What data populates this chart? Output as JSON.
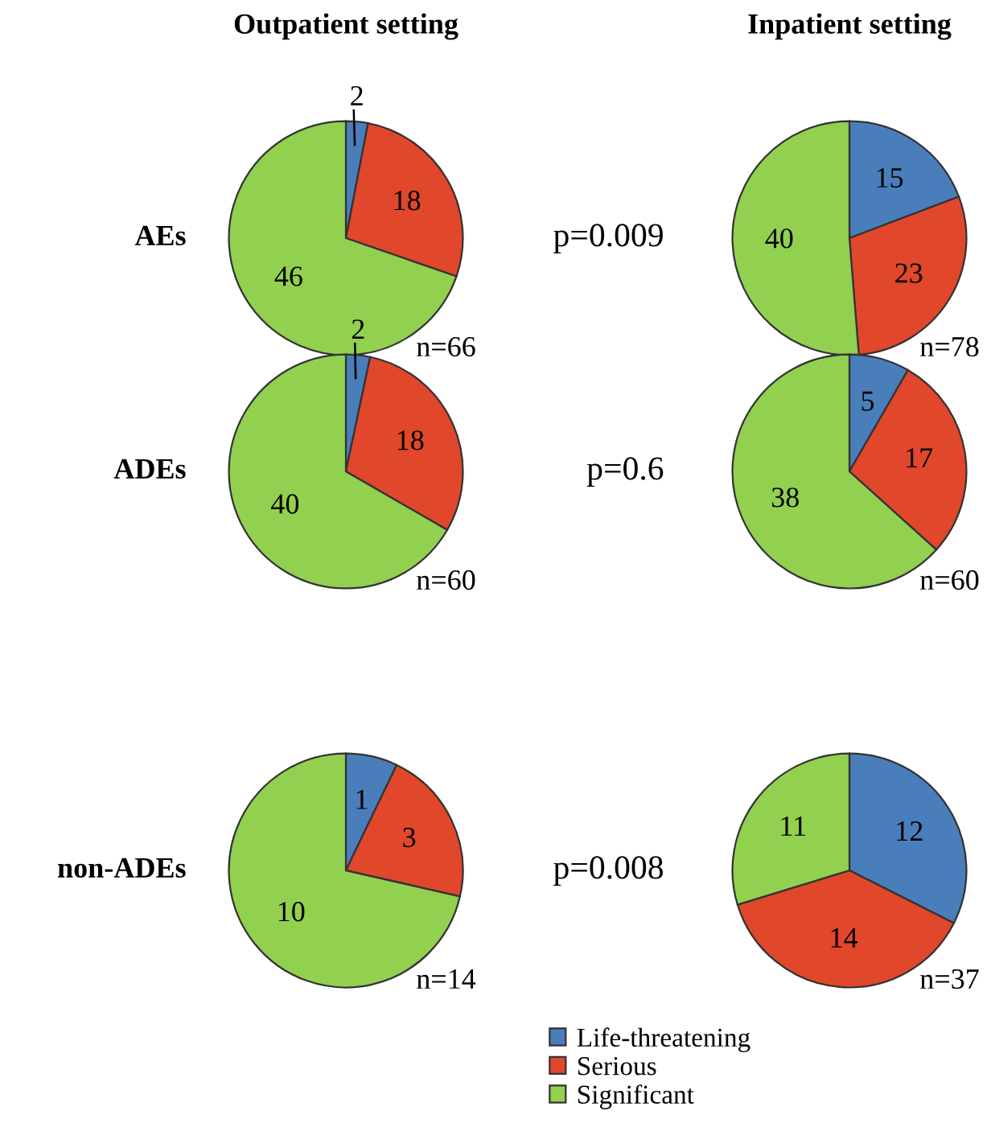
{
  "chart_data": [
    {
      "type": "pie",
      "title": "Outpatient setting",
      "categories": [
        "Life-threatening",
        "Serious",
        "Significant"
      ],
      "values": [
        2,
        18,
        46
      ],
      "colors": [
        "#4a7ebb",
        "#e0472b",
        "#92d050"
      ],
      "data_labels": true,
      "annotations": [
        "AEs",
        "n=66"
      ],
      "legend": "bottom"
    },
    {
      "type": "pie",
      "title": "Inpatient setting",
      "categories": [
        null,
        null,
        null
      ],
      "values": [
        15,
        23,
        40
      ],
      "colors": [
        "#4a7ebb",
        "#e0472b",
        "#92d050"
      ],
      "data_labels": true,
      "annotations": [
        "p=0.009",
        "n=78"
      ]
    },
    {
      "type": "pie",
      "categories": [
        null,
        null,
        null
      ],
      "values": [
        2,
        18,
        40
      ],
      "colors": [
        "#4a7ebb",
        "#e0472b",
        "#92d050"
      ],
      "data_labels": true,
      "annotations": [
        "ADEs",
        "n=60"
      ]
    },
    {
      "type": "pie",
      "categories": [
        null,
        null,
        null
      ],
      "values": [
        5,
        17,
        38
      ],
      "colors": [
        "#4a7ebb",
        "#e0472b",
        "#92d050"
      ],
      "data_labels": true,
      "annotations": [
        "p=0.6",
        "n=60"
      ]
    },
    {
      "type": "pie",
      "categories": [
        null,
        null,
        null
      ],
      "values": [
        1,
        3,
        10
      ],
      "colors": [
        "#4a7ebb",
        "#e0472b",
        "#92d050"
      ],
      "data_labels": true,
      "annotations": [
        "non-ADEs",
        "n=14"
      ]
    },
    {
      "type": "pie",
      "categories": [
        null,
        null,
        null
      ],
      "values": [
        12,
        14,
        11
      ],
      "colors": [
        "#4a7ebb",
        "#e0472b",
        "#92d050"
      ],
      "data_labels": true,
      "annotations": [
        "p=0.008",
        "n=37"
      ]
    }
  ]
}
